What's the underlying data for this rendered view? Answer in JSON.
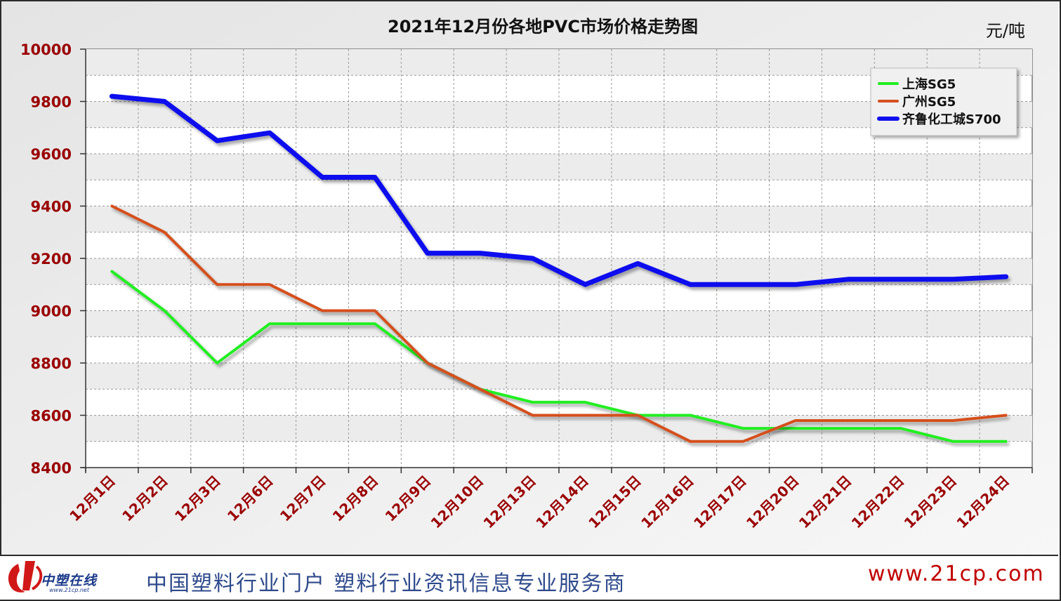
{
  "chart_data": {
    "type": "line",
    "title": "2021年12月份各地PVC市场价格走势图",
    "unit_label": "元/吨",
    "categories": [
      "12月1日",
      "12月2日",
      "12月3日",
      "12月6日",
      "12月7日",
      "12月8日",
      "12月9日",
      "12月10日",
      "12月13日",
      "12月14日",
      "12月15日",
      "12月16日",
      "12月17日",
      "12月20日",
      "12月21日",
      "12月22日",
      "12月23日",
      "12月24日"
    ],
    "ylim": [
      8400,
      10000
    ],
    "yticks": [
      8400,
      8600,
      8800,
      9000,
      9200,
      9400,
      9600,
      9800,
      10000
    ],
    "grid": true,
    "legend_position": "top-right",
    "series": [
      {
        "name": "上海SG5",
        "color": "#22ee22",
        "values": [
          9150,
          9000,
          8800,
          8950,
          8950,
          8950,
          8800,
          8700,
          8650,
          8650,
          8600,
          8600,
          8550,
          8550,
          8550,
          8550,
          8500,
          8500
        ]
      },
      {
        "name": "广州SG5",
        "color": "#d5501e",
        "values": [
          9400,
          9300,
          9100,
          9100,
          9000,
          9000,
          8800,
          8700,
          8600,
          8600,
          8600,
          8500,
          8500,
          8580,
          8580,
          8580,
          8580,
          8600
        ]
      },
      {
        "name": "齐鲁化工城S700",
        "color": "#1010ee",
        "values": [
          9820,
          9800,
          9650,
          9680,
          9510,
          9510,
          9220,
          9220,
          9200,
          9100,
          9180,
          9100,
          9100,
          9100,
          9120,
          9120,
          9120,
          9130
        ]
      }
    ]
  },
  "footer": {
    "logo_text": "中塑在线",
    "logo_sub": "www.21cp.net",
    "slogan": "中国塑料行业门户 塑料行业资讯信息专业服务商",
    "url": "www.21cp.com"
  }
}
